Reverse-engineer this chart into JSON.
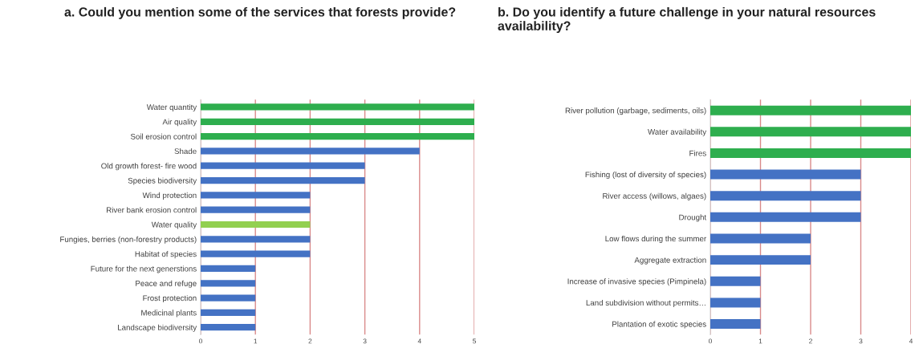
{
  "chart_data": [
    {
      "type": "bar",
      "orientation": "horizontal",
      "title": "a. Could you mention some of the services that forests provide?",
      "categories": [
        "Water quantity",
        "Air quality",
        "Soil erosion control",
        "Shade",
        "Old growth forest- fire wood",
        "Species biodiversity",
        "Wind protection",
        "River bank erosion control",
        "Water quality",
        "Fungies, berries (non-forestry products)",
        "Habitat of species",
        "Future for the next generstions",
        "Peace and refuge",
        "Frost protection",
        "Medicinal plants",
        "Landscape biodiversity"
      ],
      "values": [
        5,
        5,
        5,
        4,
        3,
        3,
        2,
        2,
        2,
        2,
        2,
        1,
        1,
        1,
        1,
        1
      ],
      "colors": [
        "#2eae4e",
        "#2eae4e",
        "#2eae4e",
        "#4472c4",
        "#4472c4",
        "#4472c4",
        "#4472c4",
        "#4472c4",
        "#92d050",
        "#4472c4",
        "#4472c4",
        "#4472c4",
        "#4472c4",
        "#4472c4",
        "#4472c4",
        "#4472c4"
      ],
      "xlim": [
        0,
        5
      ],
      "xticks": [
        0,
        1,
        2,
        3,
        4,
        5
      ],
      "grid": "x",
      "legend": false
    },
    {
      "type": "bar",
      "orientation": "horizontal",
      "title": "b. Do you identify a future challenge in your natural resources availability?",
      "categories": [
        "River pollution (garbage, sediments, oils)",
        "Water availability",
        "Fires",
        "Fishing (lost of diversity of species)",
        "River access (willows, algaes)",
        "Drought",
        "Low flows during the summer",
        "Aggregate extraction",
        "Increase of invasive species (Pimpinela)",
        "Land subdivision without permits…",
        "Plantation of exotic species"
      ],
      "values": [
        4,
        4,
        4,
        3,
        3,
        3,
        2,
        2,
        1,
        1,
        1
      ],
      "colors": [
        "#2eae4e",
        "#2eae4e",
        "#2eae4e",
        "#4472c4",
        "#4472c4",
        "#4472c4",
        "#4472c4",
        "#4472c4",
        "#4472c4",
        "#4472c4",
        "#4472c4"
      ],
      "xlim": [
        0,
        4
      ],
      "xticks": [
        0,
        1,
        2,
        3,
        4
      ],
      "grid": "x",
      "legend": false
    }
  ]
}
